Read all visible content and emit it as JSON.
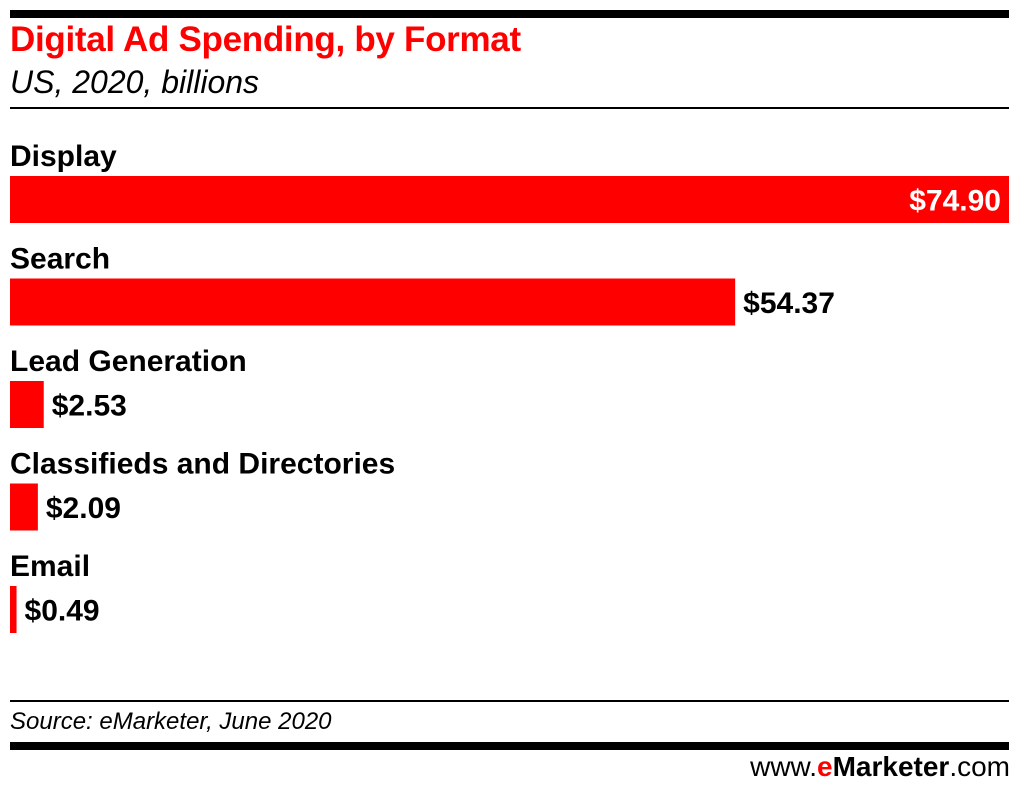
{
  "header": {
    "title": "Digital Ad Spending, by Format",
    "subtitle": "US, 2020, billions"
  },
  "footer": {
    "source": "Source: eMarketer, June 2020",
    "brand_prefix": "www.",
    "brand_e": "e",
    "brand_name": "Marketer",
    "brand_suffix": ".com"
  },
  "colors": {
    "bar": "#ff0000",
    "title": "#ff0000",
    "label_inside": "#ffffff",
    "label_outside": "#000000"
  },
  "chart_data": {
    "type": "bar",
    "orientation": "horizontal",
    "title": "Digital Ad Spending, by Format",
    "subtitle": "US, 2020, billions",
    "xlabel": "",
    "ylabel": "",
    "xlim": [
      0,
      74.9
    ],
    "grid": false,
    "categories": [
      "Display",
      "Search",
      "Lead Generation",
      "Classifieds and Directories",
      "Email"
    ],
    "values": [
      74.9,
      54.37,
      2.53,
      2.09,
      0.49
    ],
    "value_labels": [
      "$74.90",
      "$54.37",
      "$2.53",
      "$2.09",
      "$0.49"
    ]
  }
}
